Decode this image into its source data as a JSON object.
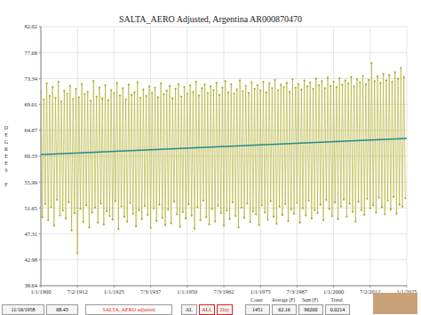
{
  "chart_data": {
    "type": "line",
    "title": "SALTA_AERO Adjusted, Argentina AR000870470",
    "y_label": "DEGREES F",
    "grid": true,
    "xlim": [
      1900,
      2025
    ],
    "xticks": [
      {
        "value": 1900,
        "label": "1/1/1900"
      },
      {
        "value": 1912.5,
        "label": "7/2/1912"
      },
      {
        "value": 1925,
        "label": "1/1/1925"
      },
      {
        "value": 1937.5,
        "label": "7/3/1937"
      },
      {
        "value": 1950,
        "label": "1/1/1950"
      },
      {
        "value": 1962.5,
        "label": "7/3/1962"
      },
      {
        "value": 1975,
        "label": "1/1/1975"
      },
      {
        "value": 1987.5,
        "label": "7/3/1987"
      },
      {
        "value": 2000,
        "label": "1/1/2000"
      },
      {
        "value": 2012.5,
        "label": "7/2/2012"
      },
      {
        "value": 2025,
        "label": "1/1/2025"
      }
    ],
    "ylim": [
      38.64,
      82.02
    ],
    "yticks": [
      38.64,
      42.98,
      47.31,
      51.65,
      55.99,
      60.33,
      64.67,
      69.01,
      73.34,
      77.68,
      82.02
    ],
    "x": [
      1900,
      1900.5,
      1901,
      1901.5,
      1902,
      1902.5,
      1903,
      1903.5,
      1904,
      1904.5,
      1905,
      1905.5,
      1906,
      1906.5,
      1907,
      1907.5,
      1908,
      1908.5,
      1909,
      1909.5,
      1910,
      1910.5,
      1911,
      1911.5,
      1912,
      1912.5,
      1913,
      1913.5,
      1914,
      1914.5,
      1915,
      1915.5,
      1916,
      1916.5,
      1917,
      1917.5,
      1918,
      1918.5,
      1919,
      1919.5,
      1920,
      1920.5,
      1921,
      1921.5,
      1922,
      1922.5,
      1923,
      1923.5,
      1924,
      1924.5,
      1925,
      1925.5,
      1926,
      1926.5,
      1927,
      1927.5,
      1928,
      1928.5,
      1929,
      1929.5,
      1930,
      1930.5,
      1931,
      1931.5,
      1932,
      1932.5,
      1933,
      1933.5,
      1934,
      1934.5,
      1935,
      1935.5,
      1936,
      1936.5,
      1937,
      1937.5,
      1938,
      1938.5,
      1939,
      1939.5,
      1940,
      1940.5,
      1941,
      1941.5,
      1942,
      1942.5,
      1943,
      1943.5,
      1944,
      1944.5,
      1945,
      1945.5,
      1946,
      1946.5,
      1947,
      1947.5,
      1948,
      1948.5,
      1949,
      1949.5,
      1950,
      1950.5,
      1951,
      1951.5,
      1952,
      1952.5,
      1953,
      1953.5,
      1954,
      1954.5,
      1955,
      1955.5,
      1956,
      1956.5,
      1957,
      1957.5,
      1958,
      1958.5,
      1959,
      1959.5,
      1960,
      1960.5,
      1961,
      1961.5,
      1962,
      1962.5,
      1963,
      1963.5,
      1964,
      1964.5,
      1965,
      1965.5,
      1966,
      1966.5,
      1967,
      1967.5,
      1968,
      1968.5,
      1969,
      1969.5,
      1970,
      1970.5,
      1971,
      1971.5,
      1972,
      1972.5,
      1973,
      1973.5,
      1974,
      1974.5,
      1975,
      1975.5,
      1976,
      1976.5,
      1977,
      1977.5,
      1978,
      1978.5,
      1979,
      1979.5,
      1980,
      1980.5,
      1981,
      1981.5,
      1982,
      1982.5,
      1983,
      1983.5,
      1984,
      1984.5,
      1985,
      1985.5,
      1986,
      1986.5,
      1987,
      1987.5,
      1988,
      1988.5,
      1989,
      1989.5,
      1990,
      1990.5,
      1991,
      1991.5,
      1992,
      1992.5,
      1993,
      1993.5,
      1994,
      1994.5,
      1995,
      1995.5,
      1996,
      1996.5,
      1997,
      1997.5,
      1998,
      1998.5,
      1999,
      1999.5,
      2000,
      2000.5,
      2001,
      2001.5,
      2002,
      2002.5,
      2003,
      2003.5,
      2004,
      2004.5,
      2005,
      2005.5,
      2006,
      2006.5,
      2007,
      2007.5,
      2008,
      2008.5,
      2009,
      2009.5,
      2010,
      2010.5,
      2011,
      2011.5,
      2012,
      2012.5,
      2013,
      2013.5,
      2014,
      2014.5,
      2015,
      2015.5,
      2016,
      2016.5,
      2017,
      2017.5,
      2018,
      2018.5,
      2019,
      2019.5,
      2020,
      2020.5,
      2021,
      2021.5,
      2022,
      2022.5,
      2023,
      2023.5,
      2024,
      2024.5
    ],
    "series": [
      {
        "name": "SALTA_AERO adjusted",
        "color": "#a9a91e",
        "marker": "circle",
        "values": [
          71.2,
          50.1,
          69.8,
          52.3,
          72.5,
          49.6,
          70.4,
          51.8,
          71.9,
          48.7,
          70.1,
          53.0,
          72.8,
          50.4,
          69.5,
          51.2,
          71.3,
          49.9,
          70.8,
          52.6,
          72.1,
          47.9,
          69.9,
          50.8,
          71.6,
          44.1,
          70.2,
          51.5,
          72.4,
          49.3,
          70.7,
          52.1,
          71.1,
          48.4,
          69.6,
          50.9,
          72.9,
          51.7,
          70.3,
          49.2,
          71.8,
          52.4,
          70.0,
          48.9,
          72.2,
          51.1,
          69.7,
          50.3,
          71.4,
          49.7,
          70.9,
          52.8,
          72.6,
          48.1,
          70.5,
          51.9,
          71.7,
          50.2,
          69.8,
          49.4,
          72.3,
          52.5,
          70.6,
          50.7,
          71.0,
          48.6,
          72.7,
          51.3,
          70.1,
          49.8,
          71.5,
          52.0,
          70.4,
          50.5,
          72.0,
          48.3,
          70.9,
          51.6,
          71.8,
          49.5,
          70.2,
          52.2,
          72.5,
          50.0,
          70.7,
          48.8,
          71.3,
          51.4,
          72.1,
          49.1,
          70.0,
          52.7,
          71.6,
          50.6,
          72.4,
          48.5,
          70.3,
          51.0,
          71.9,
          49.9,
          70.8,
          52.3,
          72.2,
          50.4,
          71.1,
          48.2,
          72.8,
          51.8,
          70.5,
          49.6,
          71.7,
          52.9,
          72.3,
          50.1,
          70.9,
          48.9,
          72.0,
          51.5,
          71.4,
          49.4,
          72.6,
          52.0,
          70.6,
          50.8,
          71.8,
          48.7,
          72.9,
          51.2,
          71.0,
          49.8,
          72.4,
          52.6,
          70.8,
          50.3,
          71.5,
          48.4,
          73.0,
          51.7,
          71.2,
          50.0,
          72.1,
          52.4,
          70.9,
          49.3,
          72.7,
          51.1,
          71.6,
          50.6,
          72.2,
          48.8,
          71.3,
          52.1,
          72.8,
          50.9,
          71.0,
          49.7,
          72.5,
          52.8,
          71.7,
          50.2,
          73.1,
          49.0,
          71.4,
          51.9,
          72.3,
          50.5,
          71.9,
          52.3,
          72.6,
          49.5,
          71.1,
          51.4,
          73.2,
          50.7,
          71.8,
          52.5,
          72.4,
          49.2,
          71.5,
          51.6,
          73.0,
          50.4,
          72.0,
          52.9,
          72.7,
          49.9,
          71.6,
          51.3,
          73.3,
          50.8,
          72.2,
          52.2,
          72.9,
          49.6,
          71.7,
          53.0,
          73.5,
          51.5,
          72.1,
          50.3,
          72.8,
          52.6,
          71.9,
          49.8,
          73.4,
          51.9,
          72.3,
          53.1,
          73.0,
          50.2,
          72.5,
          52.4,
          73.6,
          51.0,
          72.0,
          49.4,
          73.2,
          52.7,
          72.7,
          51.3,
          73.8,
          50.5,
          72.4,
          53.2,
          73.1,
          51.6,
          75.9,
          52.1,
          72.9,
          50.9,
          73.7,
          53.4,
          72.6,
          51.8,
          74.1,
          50.6,
          73.0,
          52.9,
          73.9,
          51.4,
          72.8,
          53.5,
          74.4,
          50.7,
          73.3,
          52.2,
          75.1,
          51.9,
          73.6,
          53.3
        ]
      },
      {
        "name": "Trend",
        "color": "#23898c",
        "x": [
          1900,
          2025
        ],
        "values": [
          60.6,
          63.3
        ]
      }
    ],
    "footer": {
      "date": "11/16/1958",
      "reading": 68.43,
      "buttons": [
        "AL",
        "ALL",
        "Day"
      ],
      "stats": [
        {
          "label": "Count",
          "value": 1451
        },
        {
          "label": "Average (F)",
          "value": 62.16
        },
        {
          "label": "Sum (F)",
          "value": 90200
        },
        {
          "label": "Trend",
          "value": 0.0214
        }
      ]
    }
  }
}
